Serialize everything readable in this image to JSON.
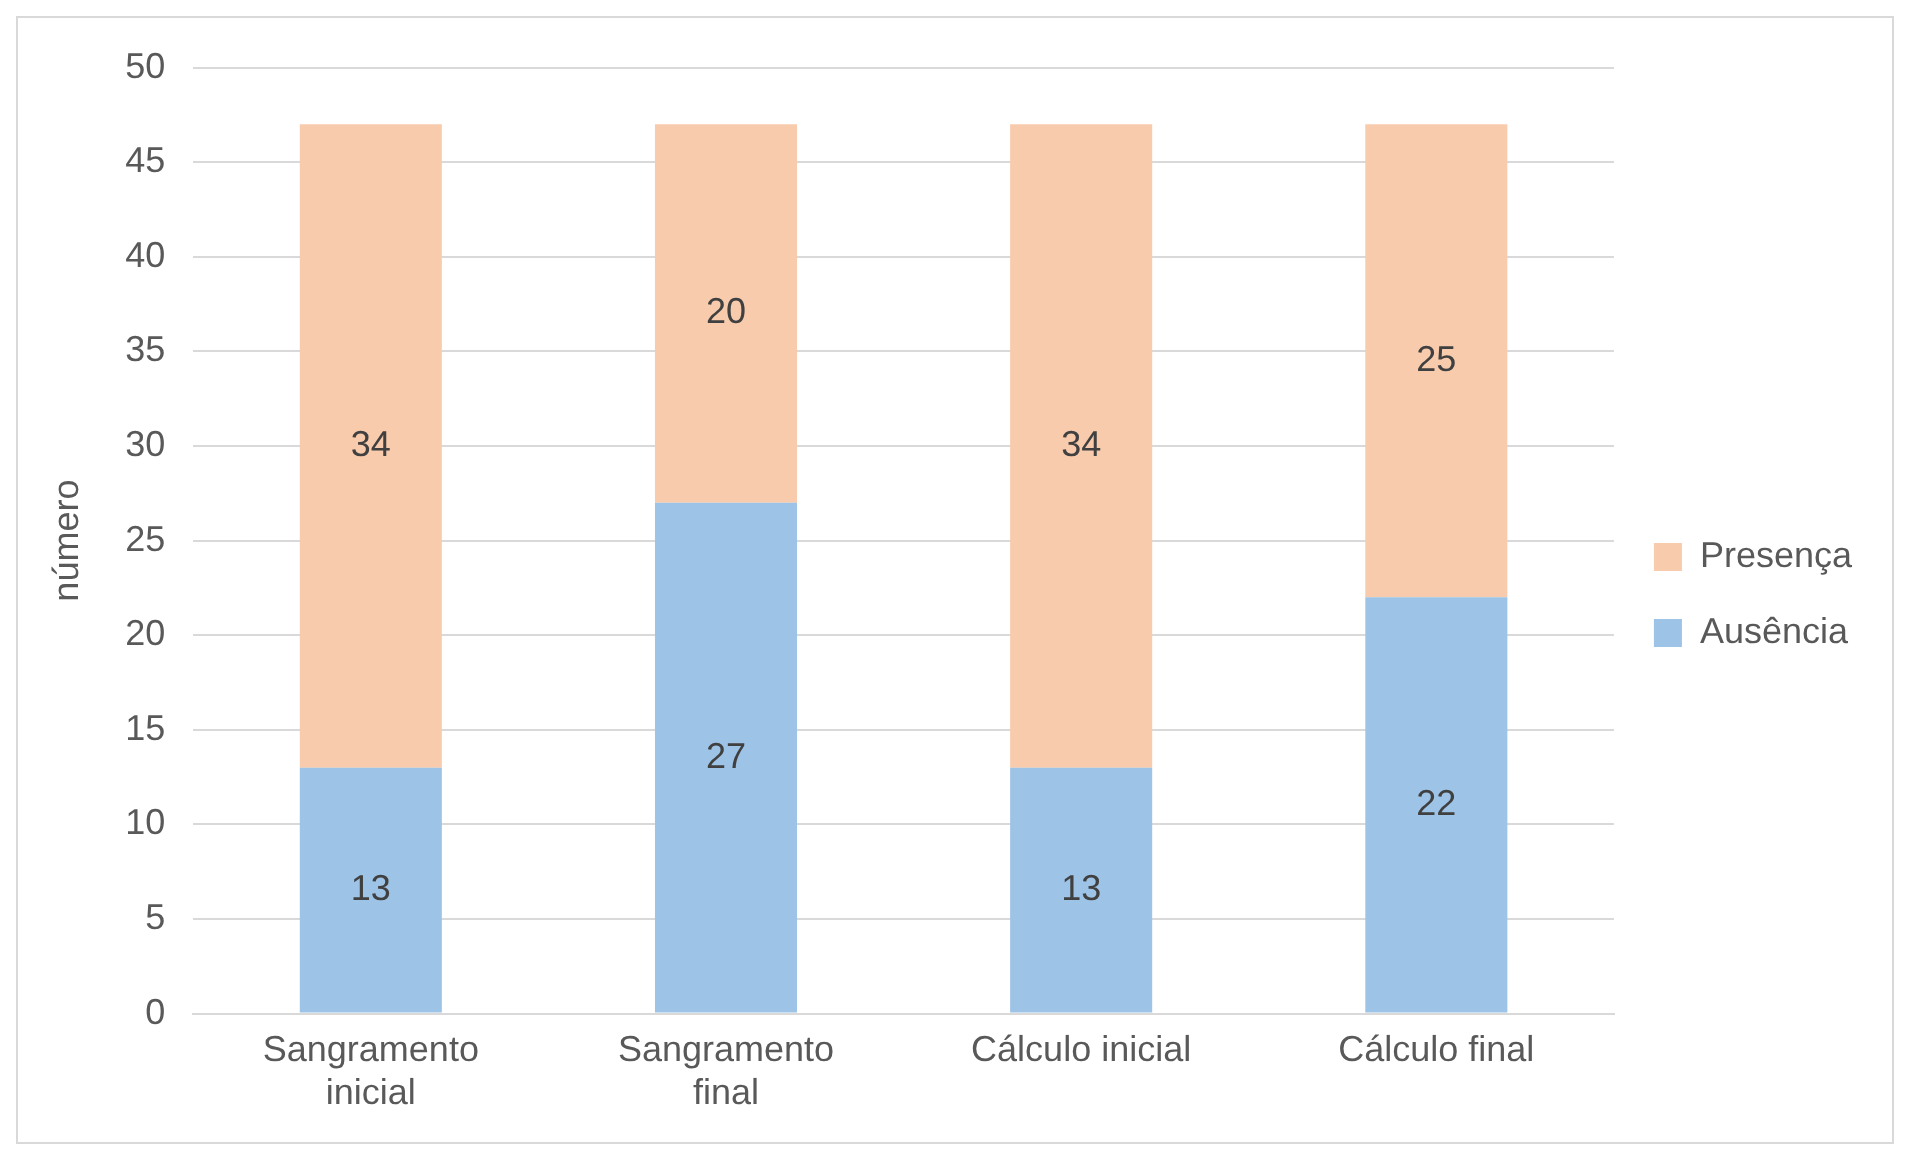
{
  "chart_data": {
    "type": "bar",
    "stacked": true,
    "ylabel": "número",
    "categories": [
      "Sangramento inicial",
      "Sangramento final",
      "Cálculo inicial",
      "Cálculo final"
    ],
    "series": [
      {
        "name": "Ausência",
        "color": "#9dc3e6",
        "values": [
          13,
          27,
          13,
          22
        ]
      },
      {
        "name": "Presença",
        "color": "#f8cbad",
        "values": [
          34,
          20,
          34,
          25
        ]
      }
    ],
    "ylim": [
      0,
      50
    ],
    "yticks": [
      0,
      5,
      10,
      15,
      20,
      25,
      30,
      35,
      40,
      45,
      50
    ],
    "grid": "y",
    "legend": "right",
    "data_labels": true
  }
}
